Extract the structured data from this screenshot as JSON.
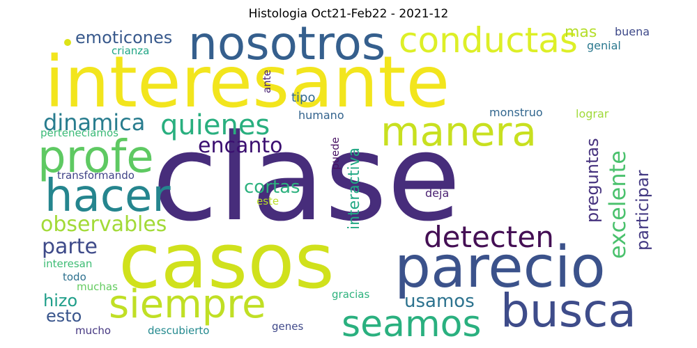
{
  "title": "Histologia Oct21-Feb22 - 2021-12",
  "words": [
    {
      "text": "interesante",
      "color": "#f2e51d"
    },
    {
      "text": "clase",
      "color": "#472d7b"
    },
    {
      "text": "casos",
      "color": "#d0e11c"
    },
    {
      "text": "nosotros",
      "color": "#355f8d"
    },
    {
      "text": "conductas",
      "color": "#ddef27"
    },
    {
      "text": "manera",
      "color": "#c8e020"
    },
    {
      "text": "profe",
      "color": "#5ec962"
    },
    {
      "text": "hacer",
      "color": "#25858e"
    },
    {
      "text": "parecio",
      "color": "#3b528b"
    },
    {
      "text": "busca",
      "color": "#3e4c8a"
    },
    {
      "text": "siempre",
      "color": "#c0df25"
    },
    {
      "text": "seamos",
      "color": "#2ab07f"
    },
    {
      "text": "detecten",
      "color": "#440f54"
    },
    {
      "text": "quienes",
      "color": "#29af7f"
    },
    {
      "text": "dinamica",
      "color": "#287c8e"
    },
    {
      "text": "encanto",
      "color": "#3b0f70"
    },
    {
      "text": "observables",
      "color": "#a2da37"
    },
    {
      "text": "parte",
      "color": "#3e4a89"
    },
    {
      "text": "emoticones",
      "color": "#38598c"
    },
    {
      "text": "cortas",
      "color": "#2cb17e"
    },
    {
      "text": "usamos",
      "color": "#2c728e"
    },
    {
      "text": "hizo",
      "color": "#1f9e89"
    },
    {
      "text": "esto",
      "color": "#39558c"
    },
    {
      "text": "excelente",
      "color": "#4ac16d"
    },
    {
      "text": "preguntas",
      "color": "#46327e"
    },
    {
      "text": "participar",
      "color": "#443a83"
    },
    {
      "text": "interactiva",
      "color": "#22a884"
    },
    {
      "text": "mas",
      "color": "#b5de2b"
    },
    {
      "text": "buena",
      "color": "#3e4989"
    },
    {
      "text": "genial",
      "color": "#2a788e"
    },
    {
      "text": "crianza",
      "color": "#21a685"
    },
    {
      "text": "ante",
      "color": "#482374"
    },
    {
      "text": "tipo",
      "color": "#30698e"
    },
    {
      "text": "humano",
      "color": "#33638d"
    },
    {
      "text": "monstruo",
      "color": "#31668e"
    },
    {
      "text": "lograr",
      "color": "#a0da39"
    },
    {
      "text": "perteneciamos",
      "color": "#3aba76"
    },
    {
      "text": "transformando",
      "color": "#404387"
    },
    {
      "text": "puede",
      "color": "#471063"
    },
    {
      "text": "deja",
      "color": "#481f70"
    },
    {
      "text": "este",
      "color": "#bade28"
    },
    {
      "text": "interesan",
      "color": "#3dbc74"
    },
    {
      "text": "todo",
      "color": "#2d708e"
    },
    {
      "text": "muchas",
      "color": "#63cb5f"
    },
    {
      "text": "gracias",
      "color": "#2db27d"
    },
    {
      "text": "genes",
      "color": "#3f4889"
    },
    {
      "text": "mucho",
      "color": "#453781"
    },
    {
      "text": "descubierto",
      "color": "#23898e"
    }
  ]
}
